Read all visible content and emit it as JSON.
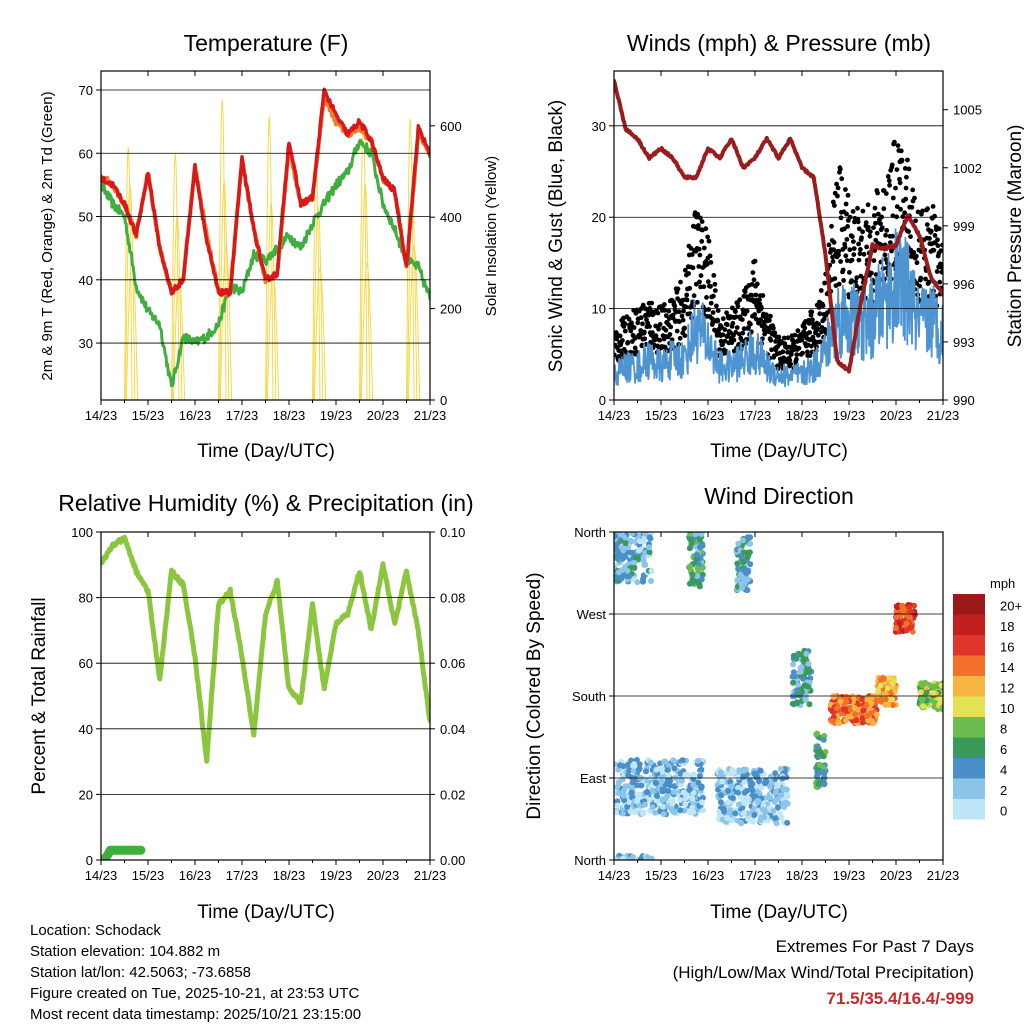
{
  "colors": {
    "temp2m": "#d7191c",
    "temp9m": "#f07d2a",
    "dewpoint": "#3fad3f",
    "solar": "#f5d94a",
    "wind": "#4d94d0",
    "gust": "#000000",
    "pressure": "#9b1c1c",
    "rh": "#8cc63f",
    "precip": "#3fad3f"
  },
  "x_ticks": [
    "14/23",
    "15/23",
    "16/23",
    "17/23",
    "18/23",
    "19/23",
    "20/23",
    "21/23"
  ],
  "x_label": "Time (Day/UTC)",
  "panels": {
    "temperature": {
      "title": "Temperature (F)",
      "ylabel": "2m & 9m T (Red, Orange) & 2m Td (Green)",
      "y2label": "Solar Insolation (Yellow)",
      "y_ticks": [
        "30",
        "40",
        "50",
        "60",
        "70"
      ],
      "y2_ticks": [
        "0",
        "200",
        "400",
        "600"
      ]
    },
    "winds": {
      "title": "Winds (mph) & Pressure (mb)",
      "ylabel": "Sonic Wind & Gust (Blue, Black)",
      "y2label": "Station Pressure (Maroon)",
      "y_ticks": [
        "0",
        "10",
        "20",
        "30"
      ],
      "y2_ticks": [
        "990",
        "993",
        "996",
        "999",
        "1002",
        "1005"
      ]
    },
    "humidity": {
      "title": "Relative Humidity (%) & Precipitation (in)",
      "ylabel": "Percent & Total Rainfall",
      "y_ticks": [
        "0",
        "20",
        "40",
        "60",
        "80",
        "100"
      ],
      "y2_ticks": [
        "0.00",
        "0.02",
        "0.04",
        "0.06",
        "0.08",
        "0.10"
      ]
    },
    "direction": {
      "title": "Wind Direction",
      "ylabel": "Direction (Colored By Speed)",
      "y_ticks": [
        "North",
        "East",
        "South",
        "West",
        "North"
      ],
      "colorbar_title": "mph",
      "colorbar_labels": [
        "0",
        "2",
        "4",
        "6",
        "8",
        "10",
        "12",
        "14",
        "16",
        "18",
        "20+"
      ],
      "colorbar_colors": [
        "#bfe6f7",
        "#8cc5ea",
        "#4a8fc7",
        "#3a9a5a",
        "#6cbd4f",
        "#e3e255",
        "#f9b544",
        "#f36f2a",
        "#e0352a",
        "#c21f1f",
        "#9c1919"
      ]
    }
  },
  "info": {
    "location": "Location: Schodack",
    "elevation": "Station elevation: 104.882 m",
    "latlon": "Station lat/lon: 42.5063; -73.6858",
    "created": "Figure created on Tue, 2025-10-21, at 23:53 UTC",
    "latest": "Most recent data timestamp: 2025/10/21 23:15:00"
  },
  "extremes": {
    "title": "Extremes For Past 7 Days",
    "subtitle": "(High/Low/Max Wind/Total Precipitation)",
    "values": "71.5/35.4/16.4/-999"
  },
  "chart_data": [
    {
      "type": "line",
      "title": "Temperature (F)",
      "x_days": [
        0,
        0.25,
        0.5,
        0.75,
        1,
        1.25,
        1.5,
        1.75,
        2,
        2.25,
        2.5,
        2.75,
        3,
        3.25,
        3.5,
        3.75,
        4,
        4.25,
        4.5,
        4.75,
        5,
        5.25,
        5.5,
        5.75,
        6,
        6.25,
        6.5,
        6.75,
        7
      ],
      "xlim": [
        0,
        7
      ],
      "ylim": [
        21,
        73
      ],
      "y2lim": [
        0,
        720
      ],
      "series": [
        {
          "name": "2m T",
          "axis": "left",
          "values": [
            56,
            55,
            52,
            47,
            57,
            45,
            38,
            40,
            58,
            46,
            38,
            38,
            59,
            48,
            40,
            41,
            62,
            52,
            53,
            70,
            66,
            63,
            65,
            62,
            56,
            54,
            42,
            64,
            60
          ]
        },
        {
          "name": "9m T",
          "axis": "left",
          "values": [
            56.5,
            55,
            52,
            47,
            57,
            45,
            38,
            40,
            58,
            47,
            38,
            38,
            59,
            48,
            40,
            41,
            61,
            52,
            53,
            69,
            65,
            63,
            64,
            62,
            56,
            54,
            42,
            63,
            60
          ]
        },
        {
          "name": "2m Td",
          "axis": "left",
          "values": [
            55,
            52,
            50,
            39,
            35,
            33,
            23,
            31,
            30,
            31,
            33,
            39,
            38,
            44,
            43,
            45,
            47,
            45,
            49,
            52,
            55,
            57,
            62,
            60,
            52,
            48,
            43,
            42,
            37
          ]
        },
        {
          "name": "Solar",
          "axis": "right",
          "peaks_x": [
            0.62,
            1.62,
            2.62,
            3.62,
            4.62,
            5.62,
            6.62
          ],
          "peaks_y": [
            640,
            630,
            680,
            640,
            580,
            700,
            690
          ]
        }
      ]
    },
    {
      "type": "line",
      "title": "Winds (mph) & Pressure (mb)",
      "x_days": [
        0,
        0.25,
        0.5,
        0.75,
        1,
        1.25,
        1.5,
        1.75,
        2,
        2.25,
        2.5,
        2.75,
        3,
        3.25,
        3.5,
        3.75,
        4,
        4.25,
        4.5,
        4.75,
        5,
        5.25,
        5.5,
        5.75,
        6,
        6.25,
        6.5,
        6.75,
        7
      ],
      "xlim": [
        0,
        7
      ],
      "ylim": [
        0,
        36
      ],
      "y2lim": [
        990,
        1007
      ],
      "series": [
        {
          "name": "Sonic Wind",
          "axis": "left",
          "values": [
            3,
            4,
            4,
            5,
            4,
            5,
            5,
            9,
            7,
            4,
            4,
            5,
            6,
            4,
            3,
            3,
            3,
            4,
            6,
            10,
            10,
            9,
            10,
            12,
            14,
            13,
            9,
            10,
            8
          ]
        },
        {
          "name": "Gust",
          "axis": "left",
          "values": [
            7,
            8,
            9,
            10,
            9,
            10,
            12,
            19,
            16,
            8,
            9,
            10,
            14,
            9,
            6,
            6,
            7,
            9,
            12,
            23,
            20,
            18,
            19,
            22,
            25,
            24,
            18,
            19,
            16
          ]
        },
        {
          "name": "Pressure",
          "axis": "right",
          "values": [
            1006.5,
            1004,
            1003.5,
            1002.5,
            1003,
            1002.5,
            1001.5,
            1001.5,
            1003,
            1002.5,
            1003.5,
            1002,
            1002.5,
            1003.5,
            1002.5,
            1003.5,
            1002,
            1001.5,
            997.5,
            992,
            991.5,
            995,
            998,
            997.8,
            998,
            999.5,
            998.5,
            996.3,
            995.5
          ]
        }
      ]
    },
    {
      "type": "line",
      "title": "Relative Humidity (%) & Precipitation (in)",
      "x_days": [
        0,
        0.25,
        0.5,
        0.75,
        1,
        1.25,
        1.5,
        1.75,
        2,
        2.25,
        2.5,
        2.75,
        3,
        3.25,
        3.5,
        3.75,
        4,
        4.25,
        4.5,
        4.75,
        5,
        5.25,
        5.5,
        5.75,
        6,
        6.25,
        6.5,
        6.75,
        7
      ],
      "xlim": [
        0,
        7
      ],
      "ylim": [
        0,
        100
      ],
      "y2lim": [
        0,
        0.1
      ],
      "series": [
        {
          "name": "RH",
          "axis": "left",
          "values": [
            90,
            96,
            98,
            88,
            82,
            55,
            88,
            84,
            62,
            30,
            78,
            82,
            62,
            38,
            75,
            85,
            52,
            48,
            78,
            52,
            72,
            75,
            88,
            70,
            90,
            72,
            88,
            70,
            42
          ]
        },
        {
          "name": "Precip",
          "axis": "right",
          "x": [
            0.05,
            0.12,
            0.2,
            0.3,
            0.4,
            0.5,
            0.6,
            0.7,
            0.85
          ],
          "values": [
            0,
            0.001,
            0.003,
            0.003,
            0.003,
            0.003,
            0.003,
            0.003,
            0.003
          ]
        }
      ]
    },
    {
      "type": "scatter",
      "title": "Wind Direction",
      "y_units": "compass degrees (North=0/360, East=90, South=180, West=270)",
      "xlim": [
        0,
        7
      ],
      "clusters": [
        {
          "x_range": [
            0,
            0.8
          ],
          "direction_deg": 335,
          "speed_mph": 3
        },
        {
          "x_range": [
            1.6,
            1.9
          ],
          "direction_deg": 330,
          "speed_mph": 5
        },
        {
          "x_range": [
            2.6,
            2.9
          ],
          "direction_deg": 325,
          "speed_mph": 4
        },
        {
          "x_range": [
            0,
            1.9
          ],
          "direction_deg": 80,
          "speed_mph": 2
        },
        {
          "x_range": [
            2.2,
            3.7
          ],
          "direction_deg": 70,
          "speed_mph": 2
        },
        {
          "x_range": [
            3.8,
            4.2
          ],
          "direction_deg": 200,
          "speed_mph": 4
        },
        {
          "x_range": [
            4.3,
            4.5
          ],
          "direction_deg": 110,
          "speed_mph": 6
        },
        {
          "x_range": [
            4.6,
            5.6
          ],
          "direction_deg": 165,
          "speed_mph": 14
        },
        {
          "x_range": [
            5.6,
            6.0
          ],
          "direction_deg": 185,
          "speed_mph": 12
        },
        {
          "x_range": [
            6.0,
            6.4
          ],
          "direction_deg": 265,
          "speed_mph": 16
        },
        {
          "x_range": [
            6.5,
            7.0
          ],
          "direction_deg": 180,
          "speed_mph": 9
        }
      ]
    }
  ]
}
